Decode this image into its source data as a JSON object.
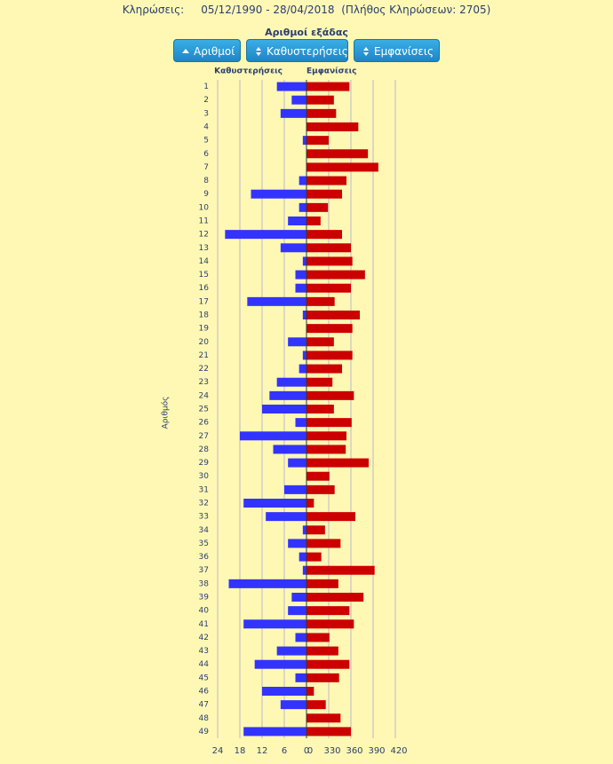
{
  "header": {
    "label": "Κληρώσεις:",
    "range": "05/12/1990 - 28/04/2018",
    "count": "(Πλήθος Κληρώσεων: 2705)"
  },
  "buttons": [
    "Αριθμοί",
    "Καθυστερήσεις",
    "Εμφανίσεις"
  ],
  "chart_data": {
    "type": "bar",
    "title": "Αριθμοί εξάδας",
    "ylabel": "Αριθμός",
    "grid": true,
    "categories": [
      1,
      2,
      3,
      4,
      5,
      6,
      7,
      8,
      9,
      10,
      11,
      12,
      13,
      14,
      15,
      16,
      17,
      18,
      19,
      20,
      21,
      22,
      23,
      24,
      25,
      26,
      27,
      28,
      29,
      30,
      31,
      32,
      33,
      34,
      35,
      36,
      37,
      38,
      39,
      40,
      41,
      42,
      43,
      44,
      45,
      46,
      47,
      48,
      49
    ],
    "xlim": [
      24,
      0
    ],
    "xticks": [
      24,
      18,
      12,
      6,
      0
    ],
    "x2lim": [
      300,
      420
    ],
    "x2ticks": [
      {
        "value": 300,
        "label": "0"
      },
      330,
      360,
      390,
      420
    ],
    "series": [
      {
        "name": "Καθυστερήσεις",
        "color": "#3333ff",
        "axis": "x",
        "values": [
          8,
          4,
          7,
          0,
          1,
          0,
          0,
          2,
          15,
          2,
          5,
          22,
          7,
          1,
          3,
          3,
          16,
          1,
          0,
          5,
          1,
          2,
          8,
          10,
          12,
          3,
          18,
          9,
          5,
          0,
          6,
          17,
          11,
          1,
          5,
          2,
          1,
          21,
          4,
          5,
          17,
          3,
          8,
          14,
          3,
          12,
          7,
          0,
          17
        ]
      },
      {
        "name": "Εμφανίσεις",
        "color": "#cc0000",
        "axis": "x2",
        "values": [
          358,
          337,
          340,
          370,
          330,
          383,
          397,
          354,
          348,
          329,
          319,
          348,
          360,
          362,
          379,
          360,
          338,
          372,
          362,
          337,
          362,
          348,
          335,
          364,
          337,
          361,
          354,
          353,
          384,
          331,
          338,
          310,
          366,
          325,
          346,
          320,
          392,
          343,
          377,
          358,
          364,
          331,
          343,
          358,
          344,
          310,
          326,
          346,
          360
        ]
      }
    ]
  }
}
